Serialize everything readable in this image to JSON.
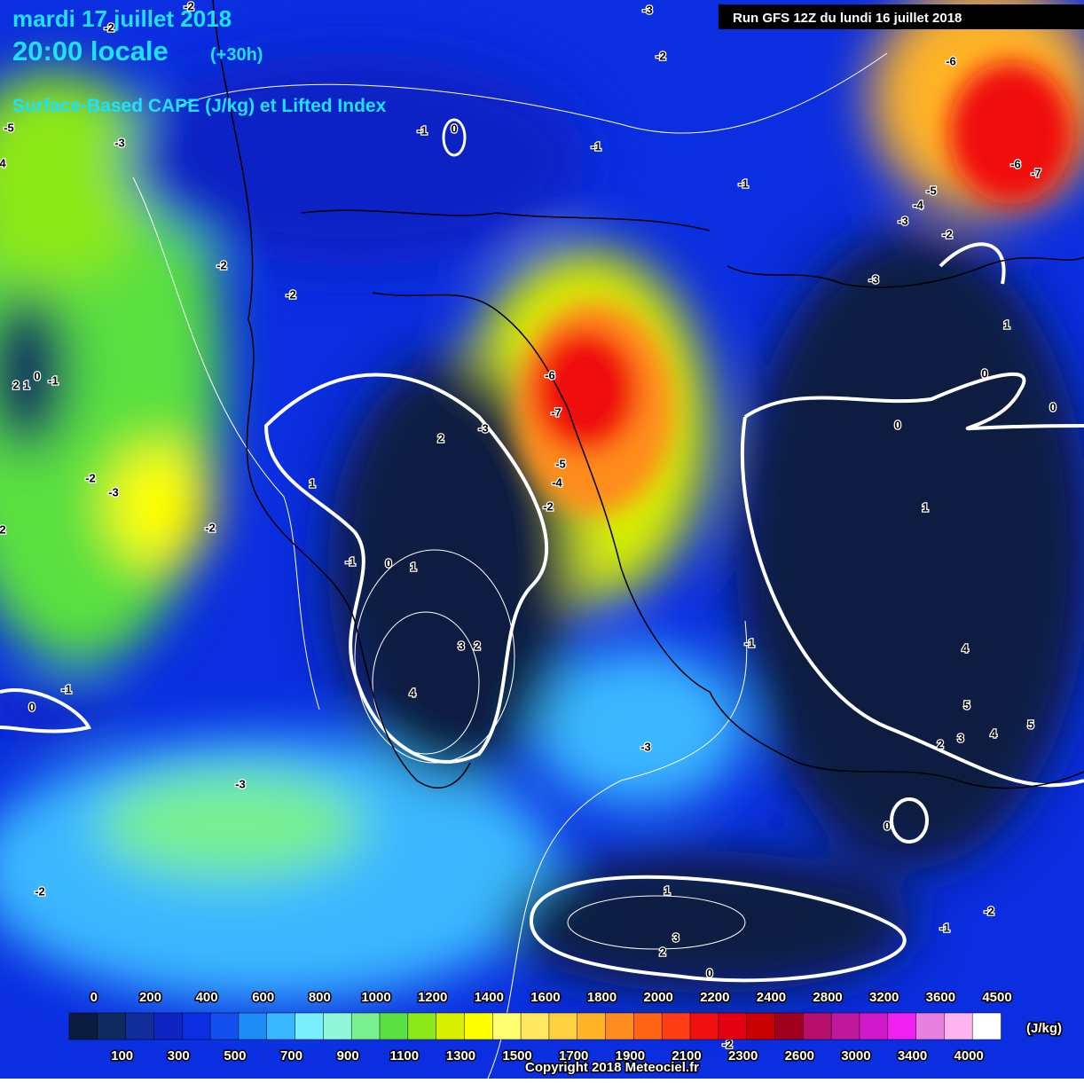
{
  "header": {
    "date": "mardi 17 juillet 2018",
    "time": "20:00 locale",
    "lead": "(+30h)",
    "product": "Surface-Based CAPE (J/kg) et Lifted Index",
    "run": "Run GFS 12Z du lundi 16 juillet 2018"
  },
  "contour_labels": [
    -2,
    -2,
    -3,
    -6,
    -2,
    -5,
    -3,
    4,
    -1,
    0,
    -1,
    -1,
    -6,
    -7,
    -5,
    -4,
    -3,
    -2,
    -2,
    -2,
    -3,
    1,
    2,
    1,
    0,
    -1,
    0,
    0,
    -6,
    -7,
    0,
    2,
    -3,
    -5,
    -4,
    -2,
    -2,
    -3,
    1,
    -2,
    1,
    2,
    -1,
    0,
    1,
    3,
    2,
    -1,
    4,
    4,
    -1,
    0,
    5,
    4,
    3,
    2,
    5,
    -3,
    -3,
    0,
    -2,
    -2,
    1,
    -1,
    3,
    2,
    0,
    -2
  ],
  "legend": {
    "unit": "(J/kg)",
    "labels": [
      0,
      100,
      200,
      300,
      400,
      500,
      600,
      700,
      800,
      900,
      1000,
      1100,
      1200,
      1300,
      1400,
      1500,
      1600,
      1700,
      1800,
      1900,
      2000,
      2100,
      2200,
      2300,
      2400,
      2600,
      2800,
      3000,
      3200,
      3400,
      3600,
      4000,
      4500
    ],
    "colors": [
      "#0b1b40",
      "#0f2a5e",
      "#102d9a",
      "#1024c4",
      "#0a2ee0",
      "#1450f0",
      "#1e8cf5",
      "#3ab8ff",
      "#78eeff",
      "#90f8d8",
      "#78f090",
      "#5ae040",
      "#8ce818",
      "#d8f000",
      "#ffff00",
      "#ffff70",
      "#ffe860",
      "#ffd040",
      "#ffb428",
      "#ff8c1e",
      "#ff6414",
      "#ff3c14",
      "#f01010",
      "#e00010",
      "#c80000",
      "#a0001e",
      "#b8106a",
      "#c0189c",
      "#d018c8",
      "#f020f0",
      "#e880e0",
      "#ffb4f0",
      "#ffffff"
    ]
  },
  "footer": {
    "copyright": "Copyright 2018 Meteociel.fr"
  }
}
